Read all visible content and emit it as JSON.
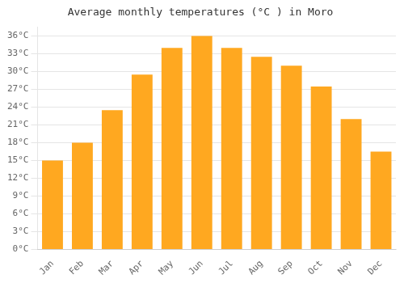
{
  "chart_data": {
    "type": "bar",
    "title": "Average monthly temperatures (°C ) in Moro",
    "categories": [
      "Jan",
      "Feb",
      "Mar",
      "Apr",
      "May",
      "Jun",
      "Jul",
      "Aug",
      "Sep",
      "Oct",
      "Nov",
      "Dec"
    ],
    "values": [
      15,
      18,
      23.5,
      29.5,
      34,
      36,
      34,
      32.5,
      31,
      27.5,
      22,
      16.5
    ],
    "color": "#FFA820",
    "ylim": [
      0,
      37.5
    ],
    "yticks": [
      {
        "value": 0,
        "label": "0°C"
      },
      {
        "value": 3,
        "label": "3°C"
      },
      {
        "value": 6,
        "label": "6°C"
      },
      {
        "value": 9,
        "label": "9°C"
      },
      {
        "value": 12,
        "label": "12°C"
      },
      {
        "value": 15,
        "label": "15°C"
      },
      {
        "value": 18,
        "label": "18°C"
      },
      {
        "value": 21,
        "label": "21°C"
      },
      {
        "value": 24,
        "label": "24°C"
      },
      {
        "value": 27,
        "label": "27°C"
      },
      {
        "value": 30,
        "label": "30°C"
      },
      {
        "value": 33,
        "label": "33°C"
      },
      {
        "value": 36,
        "label": "36°C"
      }
    ],
    "grid": true
  }
}
